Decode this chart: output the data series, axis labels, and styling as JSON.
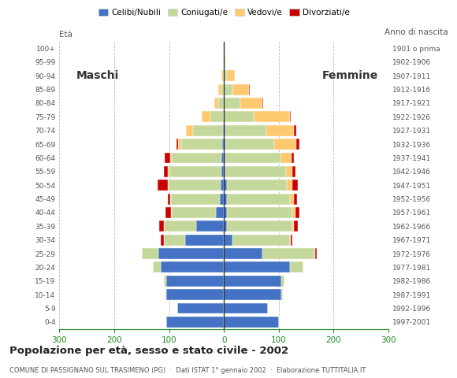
{
  "age_groups": [
    "0-4",
    "5-9",
    "10-14",
    "15-19",
    "20-24",
    "25-29",
    "30-34",
    "35-39",
    "40-44",
    "45-49",
    "50-54",
    "55-59",
    "60-64",
    "65-69",
    "70-74",
    "75-79",
    "80-84",
    "85-89",
    "90-94",
    "95-99",
    "100+"
  ],
  "birth_years": [
    "1997-2001",
    "1992-1996",
    "1987-1991",
    "1982-1986",
    "1977-1981",
    "1972-1976",
    "1967-1971",
    "1962-1966",
    "1957-1961",
    "1952-1956",
    "1947-1951",
    "1942-1946",
    "1937-1941",
    "1932-1936",
    "1927-1931",
    "1922-1926",
    "1917-1921",
    "1912-1916",
    "1907-1911",
    "1902-1906",
    "1901 o prima"
  ],
  "males": {
    "celibe": [
      105,
      85,
      105,
      105,
      115,
      120,
      70,
      50,
      15,
      7,
      6,
      5,
      5,
      3,
      2,
      0,
      0,
      0,
      0,
      0,
      0
    ],
    "coniugato": [
      0,
      0,
      2,
      5,
      15,
      30,
      40,
      60,
      80,
      90,
      95,
      95,
      90,
      75,
      55,
      25,
      10,
      5,
      2,
      0,
      0
    ],
    "vedovo": [
      0,
      0,
      0,
      0,
      0,
      0,
      0,
      0,
      1,
      1,
      2,
      2,
      3,
      5,
      12,
      15,
      8,
      5,
      2,
      0,
      0
    ],
    "divorziato": [
      0,
      0,
      0,
      0,
      0,
      0,
      5,
      8,
      10,
      5,
      18,
      8,
      10,
      3,
      0,
      0,
      0,
      0,
      0,
      0,
      0
    ]
  },
  "females": {
    "celibe": [
      100,
      80,
      105,
      105,
      120,
      70,
      15,
      5,
      5,
      5,
      5,
      3,
      3,
      2,
      2,
      0,
      0,
      0,
      0,
      0,
      0
    ],
    "coniugato": [
      0,
      0,
      2,
      5,
      25,
      95,
      105,
      120,
      120,
      115,
      110,
      110,
      100,
      90,
      75,
      55,
      30,
      15,
      5,
      0,
      0
    ],
    "vedovo": [
      0,
      0,
      0,
      0,
      0,
      2,
      2,
      2,
      5,
      8,
      10,
      12,
      20,
      40,
      50,
      65,
      40,
      30,
      15,
      2,
      0
    ],
    "divorziato": [
      0,
      0,
      0,
      0,
      0,
      2,
      3,
      8,
      8,
      5,
      10,
      5,
      5,
      5,
      5,
      2,
      2,
      2,
      0,
      0,
      0
    ]
  },
  "colors": {
    "celibe": "#4472c4",
    "coniugato": "#c5d89c",
    "vedovo": "#ffc96f",
    "divorziato": "#cc0000"
  },
  "legend_labels": [
    "Celibi/Nubili",
    "Coniugati/e",
    "Vedovi/e",
    "Divorziati/e"
  ],
  "title": "Popolazione per età, sesso e stato civile - 2002",
  "subtitle": "COMUNE DI PASSIGNANO SUL TRASIMENO (PG)  ·  Dati ISTAT 1° gennaio 2002  ·  Elaborazione TUTTITALIA.IT",
  "label_maschi": "Maschi",
  "label_femmine": "Femmine",
  "label_eta": "Età",
  "label_anno": "Anno di nascita",
  "xlim": 300,
  "bg_color": "#ffffff",
  "grid_color": "#bbbbbb",
  "axis_color": "#228822"
}
